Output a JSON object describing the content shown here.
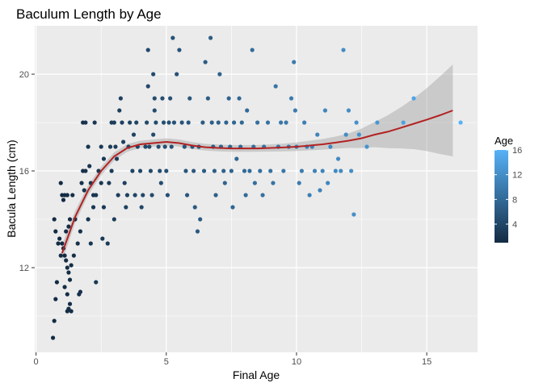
{
  "chart_data": {
    "type": "scatter",
    "title": "Baculum Length by Age",
    "xlabel": "Final Age",
    "ylabel": "Bacula Length (cm)",
    "xlim": [
      -0.05,
      16.95
    ],
    "ylim": [
      8.5,
      22.0
    ],
    "x_ticks": [
      0,
      5,
      10,
      15
    ],
    "x_tick_labels": [
      "0",
      "5",
      "10",
      "15"
    ],
    "y_ticks": [
      12,
      16,
      20
    ],
    "y_tick_labels": [
      "12",
      "16",
      "20"
    ],
    "grid": true,
    "background": "#ebebeb",
    "legend": {
      "title": "Age",
      "placement": "right",
      "type": "colorbar",
      "range": [
        1,
        16
      ],
      "ticks": [
        4,
        8,
        12,
        16
      ],
      "tick_labels": [
        "4",
        "8",
        "12",
        "16"
      ],
      "low_color": "#132B43",
      "high_color": "#56B1F7"
    },
    "point_color_by": "age",
    "points": [
      [
        0.65,
        9.1
      ],
      [
        0.7,
        9.8
      ],
      [
        0.75,
        10.7
      ],
      [
        0.8,
        11.4
      ],
      [
        0.7,
        14.0
      ],
      [
        0.75,
        13.5
      ],
      [
        0.85,
        13.0
      ],
      [
        0.9,
        13.2
      ],
      [
        0.95,
        12.5
      ],
      [
        1.0,
        13.0
      ],
      [
        1.05,
        12.8
      ],
      [
        1.1,
        12.5
      ],
      [
        1.15,
        12.3
      ],
      [
        1.2,
        12.0
      ],
      [
        1.25,
        11.8
      ],
      [
        1.3,
        11.5
      ],
      [
        1.35,
        12.1
      ],
      [
        1.1,
        11.2
      ],
      [
        1.2,
        10.9
      ],
      [
        1.3,
        10.5
      ],
      [
        1.25,
        10.3
      ],
      [
        1.2,
        10.2
      ],
      [
        1.35,
        10.2
      ],
      [
        1.05,
        14.8
      ],
      [
        1.0,
        15.0
      ],
      [
        0.95,
        15.5
      ],
      [
        1.1,
        15.0
      ],
      [
        1.2,
        15.0
      ],
      [
        1.3,
        14.0
      ],
      [
        1.4,
        15.0
      ],
      [
        1.25,
        13.7
      ],
      [
        1.15,
        13.5
      ],
      [
        1.5,
        14.0
      ],
      [
        1.6,
        13.0
      ],
      [
        1.45,
        12.5
      ],
      [
        1.7,
        11.0
      ],
      [
        1.65,
        10.9
      ],
      [
        1.7,
        13.5
      ],
      [
        1.8,
        16.0
      ],
      [
        1.9,
        16.0
      ],
      [
        1.75,
        15.5
      ],
      [
        1.85,
        15.2
      ],
      [
        1.8,
        18.0
      ],
      [
        1.9,
        18.0
      ],
      [
        2.0,
        17.0
      ],
      [
        2.05,
        16.2
      ],
      [
        2.1,
        15.5
      ],
      [
        2.2,
        15.0
      ],
      [
        2.0,
        14.0
      ],
      [
        2.1,
        13.0
      ],
      [
        2.3,
        11.4
      ],
      [
        2.2,
        14.5
      ],
      [
        2.3,
        15.0
      ],
      [
        2.25,
        18.0
      ],
      [
        2.4,
        16.0
      ],
      [
        2.5,
        15.5
      ],
      [
        2.6,
        16.5
      ],
      [
        2.5,
        17.0
      ],
      [
        2.55,
        13.2
      ],
      [
        2.6,
        14.5
      ],
      [
        2.75,
        13.0
      ],
      [
        2.8,
        15.5
      ],
      [
        2.9,
        16.0
      ],
      [
        2.85,
        17.0
      ],
      [
        2.9,
        18.0
      ],
      [
        3.0,
        18.0
      ],
      [
        3.05,
        17.0
      ],
      [
        3.1,
        16.5
      ],
      [
        3.15,
        15.0
      ],
      [
        3.0,
        14.0
      ],
      [
        3.2,
        18.5
      ],
      [
        3.25,
        19.0
      ],
      [
        3.3,
        18.0
      ],
      [
        3.35,
        17.2
      ],
      [
        3.4,
        15.5
      ],
      [
        3.5,
        15.0
      ],
      [
        3.45,
        14.5
      ],
      [
        3.55,
        17.0
      ],
      [
        3.6,
        18.0
      ],
      [
        3.7,
        16.0
      ],
      [
        3.8,
        15.0
      ],
      [
        3.75,
        17.5
      ],
      [
        3.85,
        18.0
      ],
      [
        3.9,
        17.0
      ],
      [
        4.0,
        16.0
      ],
      [
        4.05,
        14.5
      ],
      [
        4.1,
        15.0
      ],
      [
        4.2,
        17.0
      ],
      [
        4.25,
        18.0
      ],
      [
        4.3,
        19.5
      ],
      [
        4.35,
        17.0
      ],
      [
        4.4,
        16.0
      ],
      [
        4.45,
        15.0
      ],
      [
        4.5,
        17.5
      ],
      [
        4.55,
        19.0
      ],
      [
        4.6,
        18.0
      ],
      [
        4.5,
        20.0
      ],
      [
        4.55,
        18.5
      ],
      [
        4.7,
        17.0
      ],
      [
        4.75,
        16.0
      ],
      [
        4.8,
        15.5
      ],
      [
        4.85,
        19.0
      ],
      [
        4.9,
        18.0
      ],
      [
        4.95,
        17.0
      ],
      [
        5.0,
        16.0
      ],
      [
        5.05,
        15.0
      ],
      [
        5.1,
        18.0
      ],
      [
        5.15,
        19.0
      ],
      [
        5.2,
        17.0
      ],
      [
        5.3,
        18.0
      ],
      [
        5.25,
        21.5
      ],
      [
        4.3,
        21.0
      ],
      [
        5.4,
        20.0
      ],
      [
        5.5,
        21.0
      ],
      [
        5.6,
        18.0
      ],
      [
        5.7,
        17.0
      ],
      [
        5.75,
        16.0
      ],
      [
        5.8,
        15.0
      ],
      [
        5.85,
        18.0
      ],
      [
        5.9,
        19.0
      ],
      [
        6.0,
        17.0
      ],
      [
        6.05,
        16.0
      ],
      [
        6.1,
        14.5
      ],
      [
        6.2,
        13.5
      ],
      [
        6.3,
        14.0
      ],
      [
        6.25,
        17.0
      ],
      [
        6.4,
        18.0
      ],
      [
        6.45,
        16.0
      ],
      [
        6.5,
        20.5
      ],
      [
        6.6,
        19.0
      ],
      [
        6.7,
        21.5
      ],
      [
        6.75,
        18.0
      ],
      [
        6.8,
        17.0
      ],
      [
        6.85,
        16.0
      ],
      [
        6.9,
        15.0
      ],
      [
        7.0,
        18.0
      ],
      [
        7.05,
        20.0
      ],
      [
        7.1,
        17.0
      ],
      [
        7.2,
        16.0
      ],
      [
        7.25,
        15.5
      ],
      [
        7.3,
        18.0
      ],
      [
        7.4,
        19.0
      ],
      [
        7.45,
        17.0
      ],
      [
        7.5,
        16.0
      ],
      [
        7.55,
        14.5
      ],
      [
        7.6,
        18.0
      ],
      [
        7.7,
        16.5
      ],
      [
        7.8,
        19.0
      ],
      [
        7.85,
        17.0
      ],
      [
        7.9,
        18.0
      ],
      [
        8.0,
        16.0
      ],
      [
        8.05,
        15.0
      ],
      [
        8.1,
        18.5
      ],
      [
        8.2,
        16.0
      ],
      [
        8.3,
        21.0
      ],
      [
        8.35,
        17.0
      ],
      [
        8.4,
        15.5
      ],
      [
        8.5,
        18.0
      ],
      [
        8.6,
        16.0
      ],
      [
        8.7,
        15.0
      ],
      [
        8.75,
        17.0
      ],
      [
        8.9,
        18.0
      ],
      [
        9.0,
        16.0
      ],
      [
        9.1,
        15.5
      ],
      [
        9.2,
        19.5
      ],
      [
        9.3,
        17.0
      ],
      [
        9.4,
        18.0
      ],
      [
        9.5,
        16.0
      ],
      [
        9.6,
        18.0
      ],
      [
        9.7,
        17.0
      ],
      [
        9.8,
        19.0
      ],
      [
        9.9,
        20.5
      ],
      [
        9.95,
        18.5
      ],
      [
        10.0,
        17.0
      ],
      [
        10.1,
        15.5
      ],
      [
        10.2,
        16.0
      ],
      [
        10.3,
        18.0
      ],
      [
        10.4,
        17.0
      ],
      [
        10.5,
        15.0
      ],
      [
        10.6,
        17.0
      ],
      [
        10.7,
        16.0
      ],
      [
        10.8,
        17.5
      ],
      [
        10.9,
        15.2
      ],
      [
        11.0,
        16.0
      ],
      [
        11.1,
        18.5
      ],
      [
        11.2,
        15.5
      ],
      [
        11.3,
        17.0
      ],
      [
        11.5,
        16.0
      ],
      [
        11.6,
        16.5
      ],
      [
        11.7,
        16.0
      ],
      [
        11.8,
        21.0
      ],
      [
        11.9,
        17.5
      ],
      [
        12.0,
        18.5
      ],
      [
        12.1,
        16.0
      ],
      [
        12.2,
        14.2
      ],
      [
        12.3,
        18.0
      ],
      [
        12.4,
        17.5
      ],
      [
        12.7,
        17.0
      ],
      [
        13.1,
        18.0
      ],
      [
        14.1,
        18.0
      ],
      [
        14.5,
        19.0
      ],
      [
        16.3,
        18.0
      ]
    ],
    "smooth_fit": {
      "x": [
        1.0,
        1.5,
        2.0,
        2.5,
        3.0,
        3.5,
        4.0,
        4.5,
        5.0,
        5.5,
        6.0,
        6.5,
        7.0,
        7.5,
        8.0,
        8.5,
        9.0,
        9.5,
        10.0,
        10.5,
        11.0,
        11.5,
        12.0,
        12.5,
        13.0,
        13.5,
        14.0,
        14.5,
        15.0,
        15.5,
        16.0
      ],
      "y": [
        12.6,
        14.1,
        15.2,
        16.0,
        16.6,
        16.95,
        17.1,
        17.15,
        17.2,
        17.15,
        17.05,
        16.98,
        16.95,
        16.93,
        16.93,
        16.93,
        16.95,
        16.97,
        17.0,
        17.05,
        17.1,
        17.17,
        17.25,
        17.35,
        17.5,
        17.62,
        17.78,
        17.95,
        18.12,
        18.3,
        18.5
      ],
      "ci_width": [
        0.35,
        0.25,
        0.2,
        0.18,
        0.17,
        0.16,
        0.15,
        0.15,
        0.15,
        0.15,
        0.14,
        0.14,
        0.14,
        0.14,
        0.14,
        0.14,
        0.15,
        0.16,
        0.18,
        0.2,
        0.22,
        0.25,
        0.3,
        0.4,
        0.52,
        0.68,
        0.85,
        1.05,
        1.3,
        1.6,
        1.9
      ],
      "color": "#b22222",
      "band_color": "#999999"
    }
  }
}
